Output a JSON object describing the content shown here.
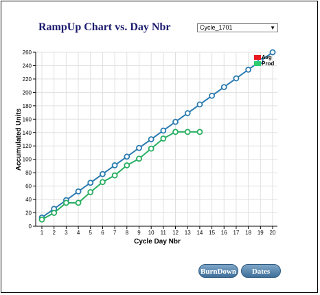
{
  "header": {
    "title": "RampUp Chart vs. Day Nbr",
    "cycle_select": {
      "value": "Cycle_1701",
      "arrow_icon": "dropdown-arrow-icon"
    }
  },
  "buttons": {
    "burndown_label": "BurnDown",
    "dates_label": "Dates"
  },
  "colors": {
    "avg": "#2b7bb0",
    "prod": "#27ae60",
    "avg_legend": "#e8191f",
    "prod_legend": "#2ecc71"
  },
  "chart_data": {
    "type": "line",
    "title": "RampUp Chart vs. Day Nbr",
    "xlabel": "Cycle Day Nbr",
    "ylabel": "Accumulated Units",
    "x": [
      1,
      2,
      3,
      4,
      5,
      6,
      7,
      8,
      9,
      10,
      11,
      12,
      13,
      14,
      15,
      16,
      17,
      18,
      19,
      20
    ],
    "xlim": [
      1,
      20
    ],
    "ylim": [
      0,
      260
    ],
    "yticks": [
      0,
      20,
      40,
      60,
      80,
      100,
      120,
      140,
      160,
      180,
      200,
      220,
      240,
      260
    ],
    "grid": true,
    "legend_position": "top-right",
    "series": [
      {
        "name": "Avg",
        "x": [
          1,
          2,
          3,
          4,
          5,
          6,
          7,
          8,
          9,
          10,
          11,
          12,
          13,
          14,
          15,
          16,
          17,
          18,
          19,
          20
        ],
        "values": [
          13,
          26,
          39,
          52,
          65,
          78,
          91,
          104,
          117,
          130,
          143,
          156,
          169,
          182,
          195,
          208,
          221,
          234,
          247,
          260
        ]
      },
      {
        "name": "Prod",
        "x": [
          1,
          2,
          3,
          4,
          5,
          6,
          7,
          8,
          9,
          10,
          11,
          12,
          13,
          14
        ],
        "values": [
          10,
          20,
          35,
          35,
          51,
          66,
          76,
          91,
          101,
          116,
          131,
          141,
          141,
          141
        ]
      }
    ]
  }
}
